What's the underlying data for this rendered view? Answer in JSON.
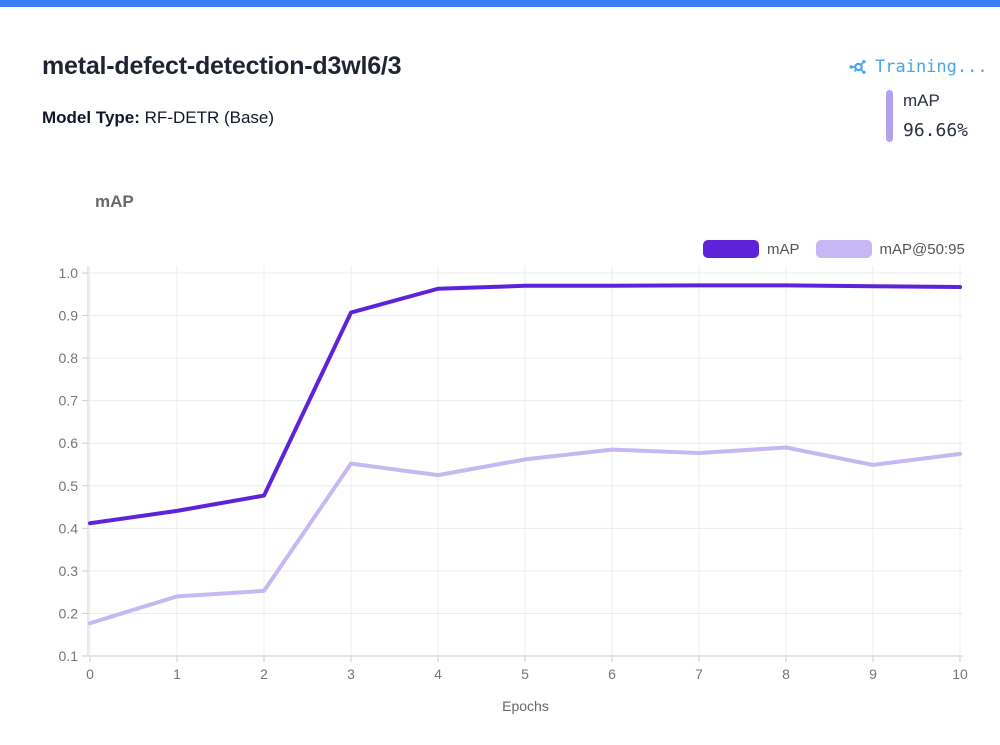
{
  "colors": {
    "progress_bar": "#3C7DF7",
    "status_blue": "#4AA5E8",
    "badge_bar": "#B2A1EF",
    "grid": "#ECECEC",
    "axis": "#D8D8D8",
    "tick": "#CFCFCF",
    "tick_label": "#757575",
    "axis_label": "#666666"
  },
  "header": {
    "title": "metal-defect-detection-d3wl6/3",
    "status_label": "Training...",
    "model_type_label": "Model Type:",
    "model_type_value": "RF-DETR (Base)",
    "metric_badge": {
      "label": "mAP",
      "value": "96.66%"
    }
  },
  "chart_data": {
    "type": "line",
    "title": "mAP",
    "xlabel": "Epochs",
    "ylabel": "",
    "x": [
      0,
      1,
      2,
      3,
      4,
      5,
      6,
      7,
      8,
      9,
      10
    ],
    "xticks": [
      0,
      1,
      2,
      3,
      4,
      5,
      6,
      7,
      8,
      9,
      10
    ],
    "yticks": [
      0.1,
      0.2,
      0.3,
      0.4,
      0.5,
      0.6,
      0.7,
      0.8,
      0.9,
      1.0
    ],
    "ylim": [
      0.1,
      1.0
    ],
    "grid": true,
    "legend_position": "top-right",
    "series": [
      {
        "name": "mAP",
        "color": "#5E22D9",
        "values": [
          0.412,
          0.441,
          0.477,
          0.907,
          0.963,
          0.97,
          0.97,
          0.971,
          0.971,
          0.969,
          0.967
        ]
      },
      {
        "name": "mAP@50:95",
        "color": "#C7B8F4",
        "values": [
          0.177,
          0.24,
          0.253,
          0.552,
          0.525,
          0.562,
          0.585,
          0.577,
          0.59,
          0.549,
          0.575
        ]
      }
    ]
  }
}
